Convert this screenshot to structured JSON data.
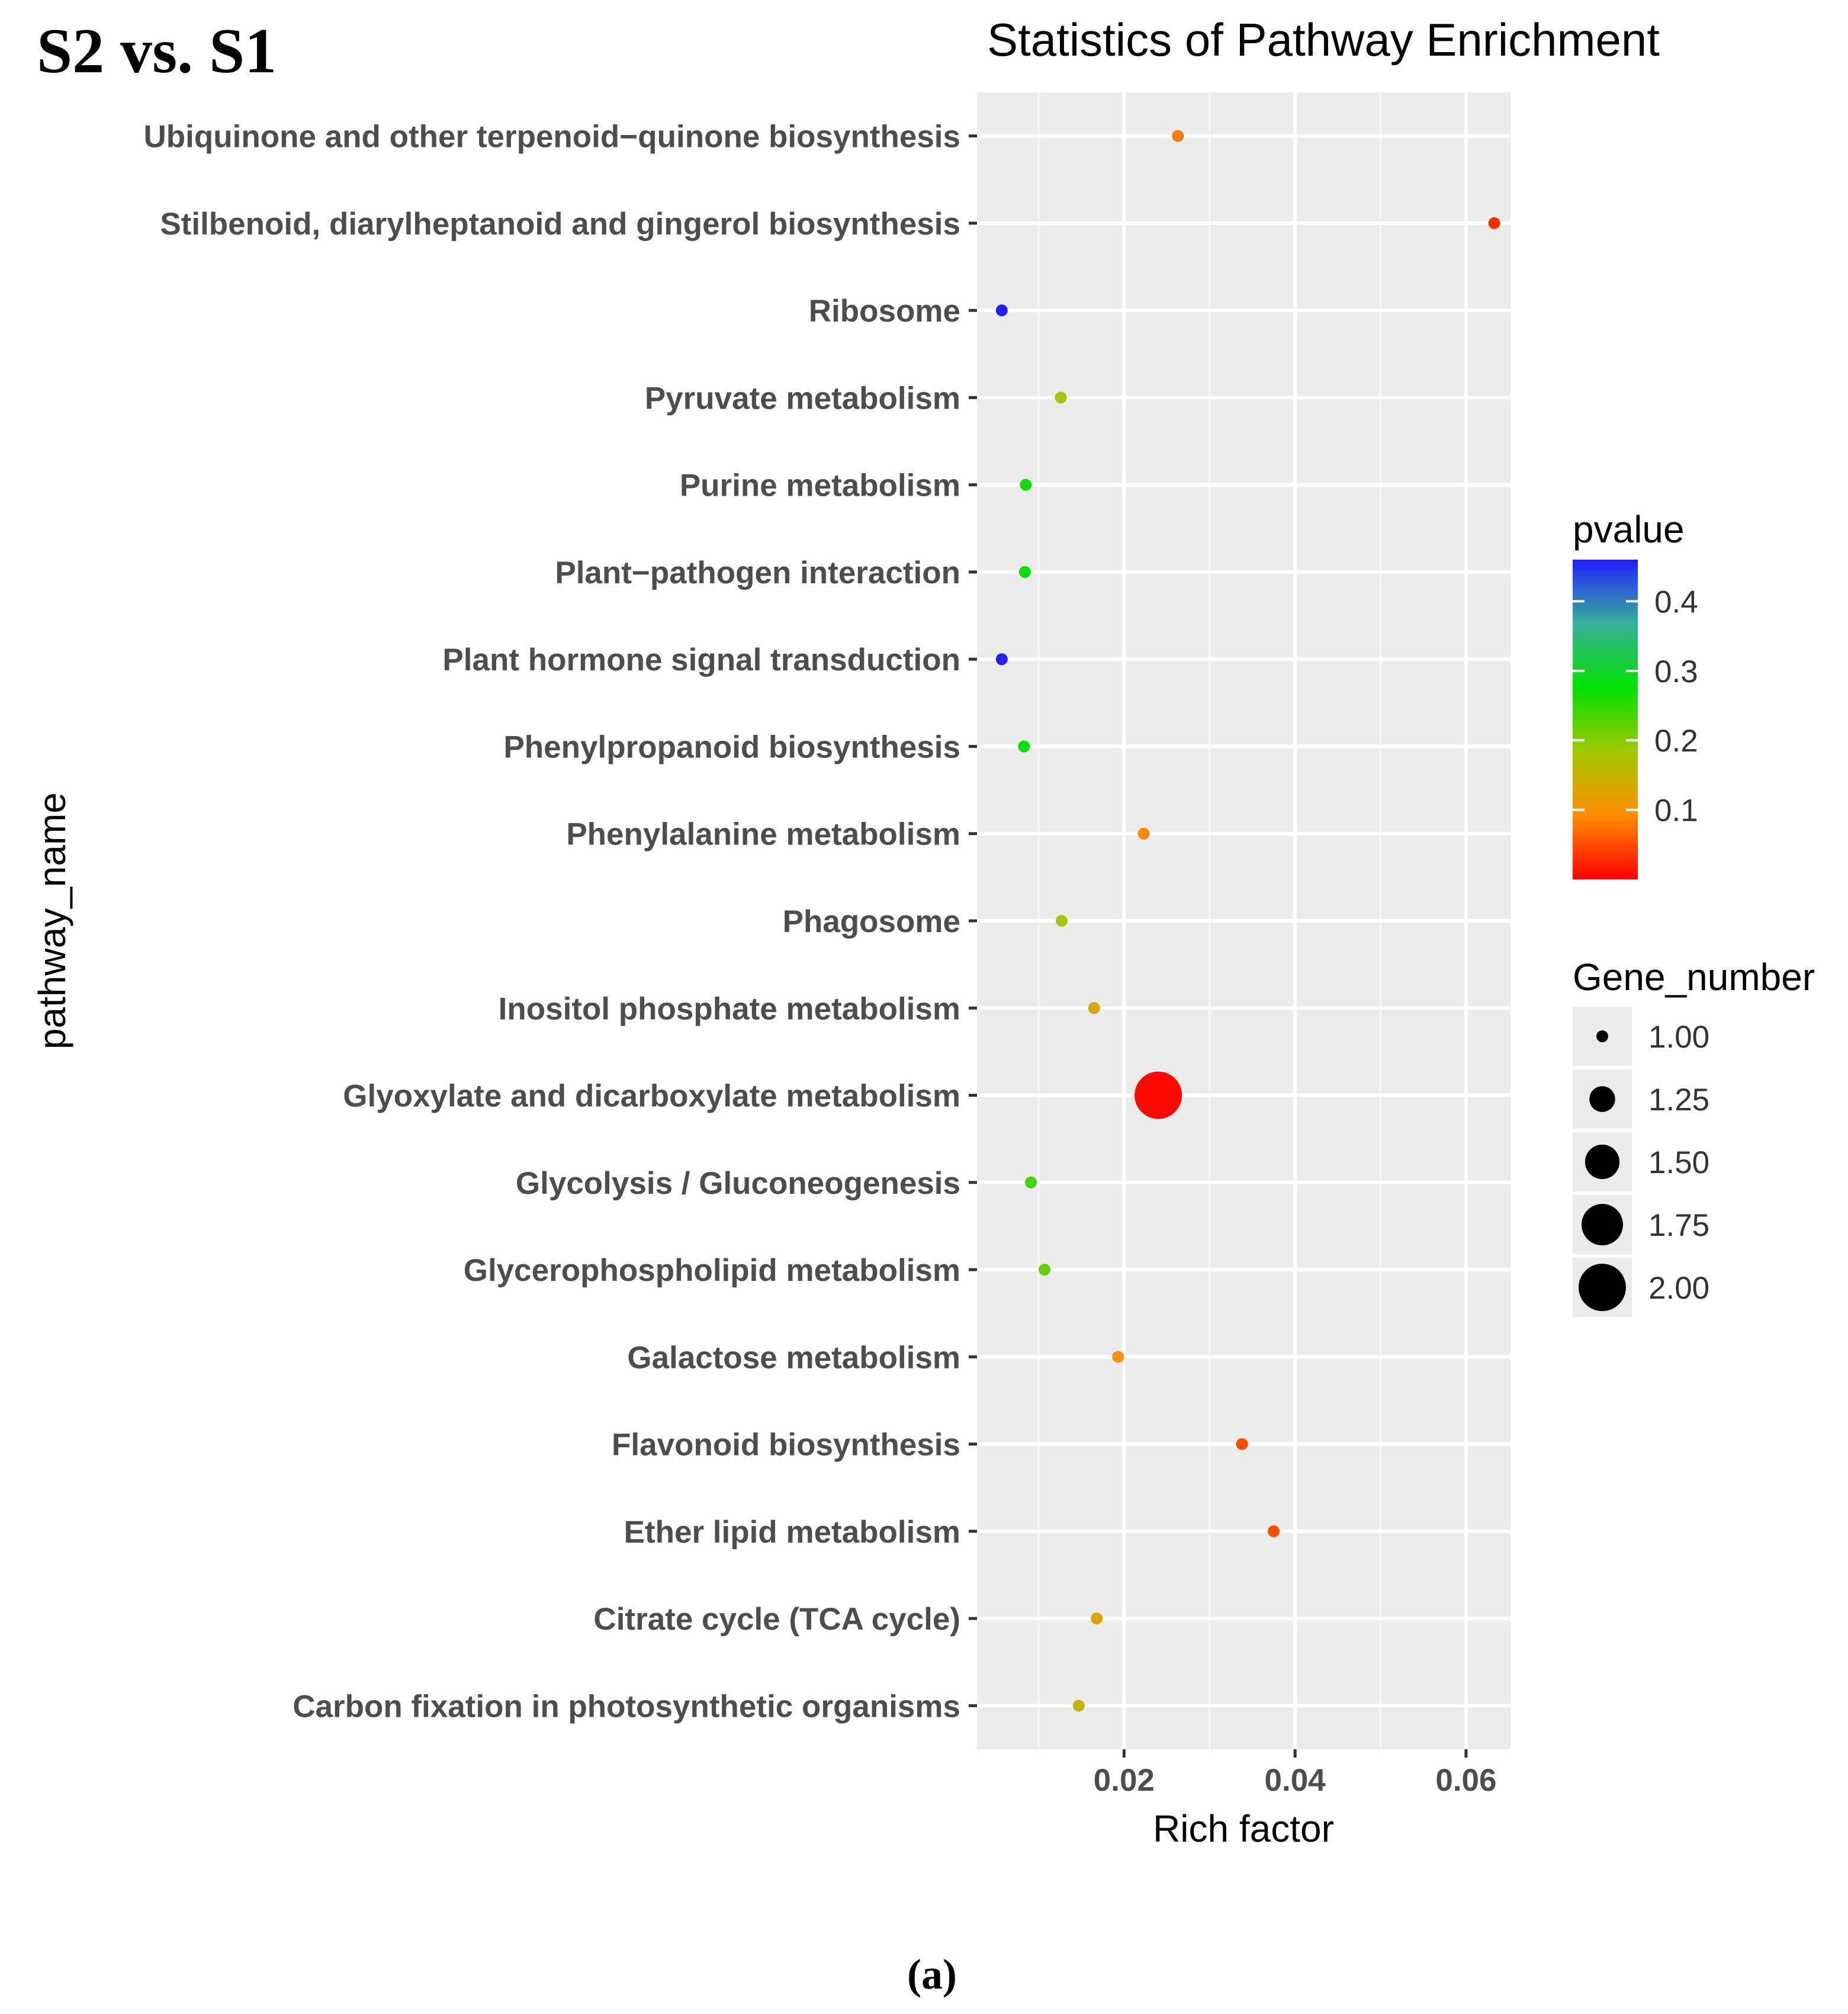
{
  "figure_label": "S2 vs. S1",
  "caption": "(a)",
  "chart_data": {
    "type": "scatter",
    "title": "Statistics of Pathway Enrichment",
    "xlabel": "Rich factor",
    "ylabel": "pathway_name",
    "xlim": [
      0.0028,
      0.0652
    ],
    "x_ticks": [
      0.02,
      0.04,
      0.06
    ],
    "x_tick_labels": [
      "0.02",
      "0.04",
      "0.06"
    ],
    "grid": true,
    "categories": [
      "Ubiquinone and other terpenoid−quinone biosynthesis",
      "Stilbenoid, diarylheptanoid and gingerol biosynthesis",
      "Ribosome",
      "Pyruvate metabolism",
      "Purine metabolism",
      "Plant−pathogen interaction",
      "Plant hormone signal transduction",
      "Phenylpropanoid biosynthesis",
      "Phenylalanine metabolism",
      "Phagosome",
      "Inositol phosphate metabolism",
      "Glyoxylate and dicarboxylate metabolism",
      "Glycolysis / Gluconeogenesis",
      "Glycerophospholipid metabolism",
      "Galactose metabolism",
      "Flavonoid biosynthesis",
      "Ether lipid metabolism",
      "Citrate cycle (TCA cycle)",
      "Carbon fixation in photosynthetic organisms"
    ],
    "rich_factor": [
      0.0263,
      0.0633,
      0.0057,
      0.0126,
      0.0085,
      0.0084,
      0.0057,
      0.0083,
      0.0223,
      0.0127,
      0.0165,
      0.024,
      0.0091,
      0.0107,
      0.0193,
      0.0338,
      0.0375,
      0.0168,
      0.0147
    ],
    "pvalue": [
      0.08,
      0.03,
      0.46,
      0.18,
      0.27,
      0.28,
      0.46,
      0.28,
      0.09,
      0.18,
      0.13,
      0.005,
      0.24,
      0.22,
      0.1,
      0.05,
      0.05,
      0.13,
      0.15
    ],
    "gene_number": [
      1,
      1,
      1,
      1,
      1,
      1,
      1,
      1,
      1,
      1,
      1,
      2,
      1,
      1,
      1,
      1,
      1,
      1,
      1
    ],
    "legend_color": {
      "title": "pvalue",
      "range": [
        0.0,
        0.46
      ],
      "ticks": [
        0.4,
        0.3,
        0.2,
        0.1
      ],
      "tick_labels": [
        "0.4",
        "0.3",
        "0.2",
        "0.1"
      ],
      "colors": [
        "#ff0000",
        "#ff8c00",
        "#a0c800",
        "#00e000",
        "#3ab09a",
        "#2020ff"
      ]
    },
    "legend_size": {
      "title": "Gene_number",
      "values": [
        1.0,
        1.25,
        1.5,
        1.75,
        2.0
      ],
      "labels": [
        "1.00",
        "1.25",
        "1.50",
        "1.75",
        "2.00"
      ]
    },
    "legend_position": "right"
  }
}
